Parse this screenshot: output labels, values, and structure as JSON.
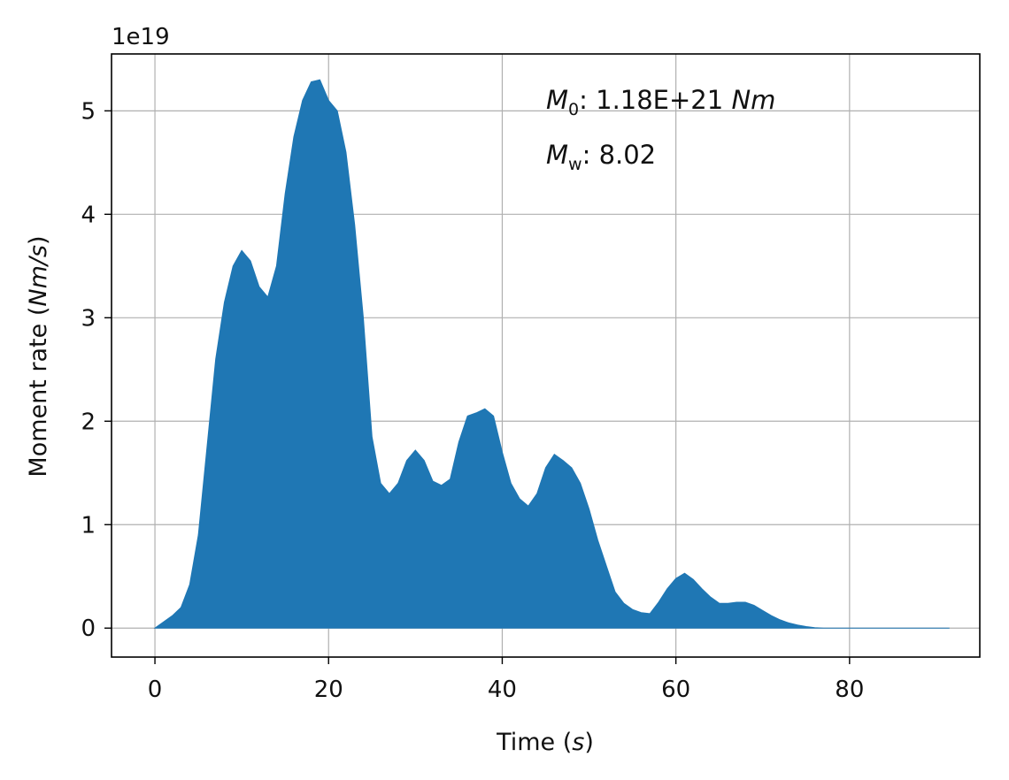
{
  "chart_data": {
    "type": "area",
    "xlabel": "Time (s)",
    "xlabel_parts": {
      "prefix": "Time (",
      "unit": "s",
      "suffix": ")"
    },
    "ylabel": "Moment rate (Nm/s)",
    "ylabel_parts": {
      "prefix": "Moment rate (",
      "unit": "Nm/s",
      "suffix": ")"
    },
    "y_offset_text": "1e19",
    "xlim": [
      -5,
      95
    ],
    "ylim": [
      -0.28,
      5.55
    ],
    "xticks": [
      0,
      20,
      40,
      60,
      80
    ],
    "yticks": [
      0,
      1,
      2,
      3,
      4,
      5
    ],
    "grid": true,
    "fill_color": "#1f77b4",
    "annotations": [
      {
        "symbol": "M",
        "sub": "0",
        "text": ": 1.18E+21 ",
        "unit": "Nm"
      },
      {
        "symbol": "M",
        "sub": "w",
        "text": ": 8.02",
        "unit": ""
      }
    ],
    "x": [
      0,
      1,
      2,
      3,
      4,
      5,
      6,
      7,
      8,
      9,
      10,
      11,
      12,
      13,
      14,
      15,
      16,
      17,
      18,
      19,
      20,
      21,
      22,
      23,
      24,
      25,
      26,
      27,
      28,
      29,
      30,
      31,
      32,
      33,
      34,
      35,
      36,
      37,
      38,
      39,
      40,
      41,
      42,
      43,
      44,
      45,
      46,
      47,
      48,
      49,
      50,
      51,
      52,
      53,
      54,
      55,
      56,
      57,
      58,
      59,
      60,
      61,
      62,
      63,
      64,
      65,
      66,
      67,
      68,
      69,
      70,
      71,
      72,
      73,
      74,
      75,
      76,
      77,
      78,
      80,
      85,
      91.5
    ],
    "y": [
      0,
      0.06,
      0.12,
      0.2,
      0.42,
      0.9,
      1.75,
      2.6,
      3.15,
      3.5,
      3.65,
      3.55,
      3.3,
      3.2,
      3.5,
      4.2,
      4.75,
      5.1,
      5.28,
      5.3,
      5.1,
      5.0,
      4.6,
      3.9,
      3.0,
      1.85,
      1.4,
      1.3,
      1.4,
      1.62,
      1.72,
      1.62,
      1.42,
      1.38,
      1.44,
      1.8,
      2.05,
      2.08,
      2.12,
      2.05,
      1.7,
      1.4,
      1.25,
      1.18,
      1.3,
      1.55,
      1.68,
      1.62,
      1.55,
      1.4,
      1.15,
      0.85,
      0.6,
      0.35,
      0.24,
      0.18,
      0.15,
      0.14,
      0.25,
      0.38,
      0.48,
      0.53,
      0.47,
      0.38,
      0.3,
      0.24,
      0.24,
      0.25,
      0.25,
      0.22,
      0.17,
      0.12,
      0.08,
      0.05,
      0.03,
      0.015,
      0.005,
      0,
      0,
      0,
      0,
      0
    ]
  }
}
